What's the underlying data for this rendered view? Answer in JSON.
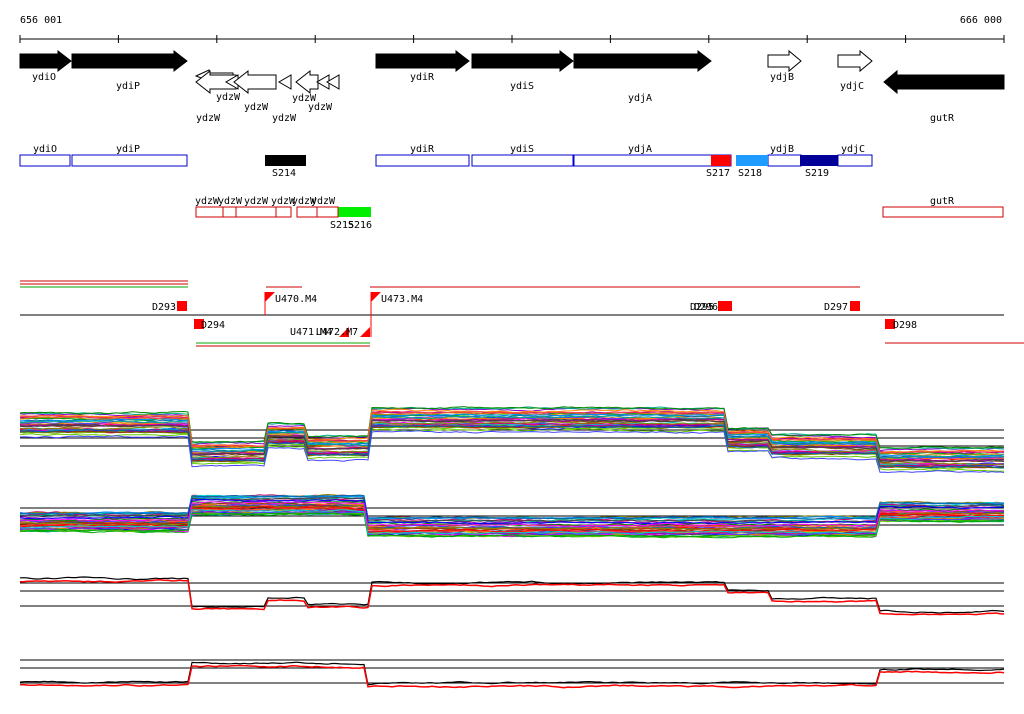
{
  "header": {
    "coord_start": "656 001",
    "coord_end": "666 000"
  },
  "colors": {
    "gene_fill": "#000000",
    "box_blue": "#0000cc",
    "box_red": "#cc0000",
    "bright_red": "#ff0000",
    "light_blue": "#1e9bff",
    "dark_blue": "#000099",
    "green": "#00ee00",
    "trace_black": "#000000",
    "trace_red": "#ff0000"
  },
  "genes_top": [
    {
      "label": "ydiO",
      "strand": "+",
      "filled": true
    },
    {
      "label": "ydiP",
      "strand": "+",
      "filled": true
    },
    {
      "label": "ydzW",
      "strand": "-",
      "filled": false
    },
    {
      "label": "ydzW",
      "strand": "-",
      "filled": false
    },
    {
      "label": "ydzW",
      "strand": "-",
      "filled": false
    },
    {
      "label": "ydzW",
      "strand": "-",
      "filled": false
    },
    {
      "label": "ydzW",
      "strand": "-",
      "filled": false
    },
    {
      "label": "ydzW",
      "strand": "-",
      "filled": false
    },
    {
      "label": "ydiR",
      "strand": "+",
      "filled": true
    },
    {
      "label": "ydiS",
      "strand": "+",
      "filled": true
    },
    {
      "label": "ydjA",
      "strand": "+",
      "filled": true
    },
    {
      "label": "ydjB",
      "strand": "+",
      "filled": false
    },
    {
      "label": "ydjC",
      "strand": "+",
      "filled": false
    },
    {
      "label": "gutR",
      "strand": "-",
      "filled": true
    }
  ],
  "plus_boxes": [
    "ydiO",
    "ydiP",
    "ydiR",
    "ydiS",
    "ydjA",
    "ydjB",
    "ydjC"
  ],
  "minus_boxes": [
    "ydzW",
    "ydzW",
    "ydzW",
    "ydzW",
    "ydzW",
    "ydzW",
    "gutR"
  ],
  "segments": [
    "S214",
    "S215",
    "S216",
    "S217",
    "S218",
    "S219"
  ],
  "down_markers": [
    "D293",
    "D294",
    "D295",
    "D296",
    "D297",
    "D298"
  ],
  "up_markers": [
    "U470.M4",
    "U471.M4",
    "U472.M7",
    "U473.M4"
  ]
}
